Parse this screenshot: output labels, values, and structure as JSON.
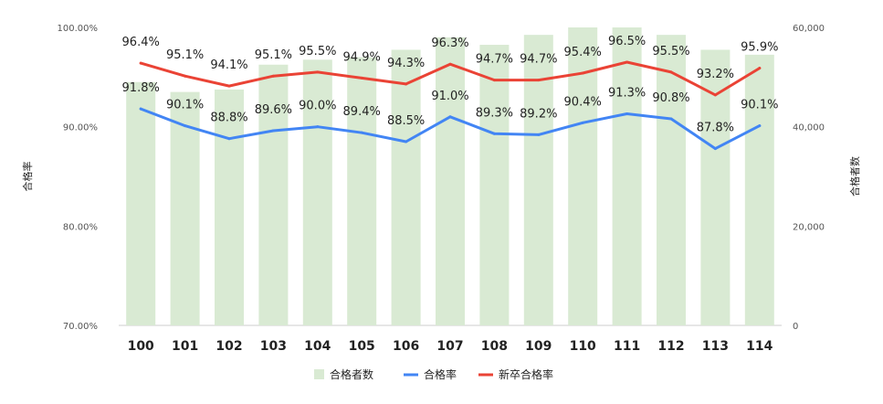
{
  "chart_data": {
    "type": "bar",
    "categories": [
      "100",
      "101",
      "102",
      "103",
      "104",
      "105",
      "106",
      "107",
      "108",
      "109",
      "110",
      "111",
      "112",
      "113",
      "114"
    ],
    "series": [
      {
        "name": "合格者数",
        "type": "bar",
        "axis": "right",
        "color": "#d9ead3",
        "values": [
          49000,
          47000,
          47500,
          52500,
          53500,
          54000,
          55500,
          58000,
          56500,
          58500,
          60000,
          60000,
          58500,
          55500,
          54500
        ]
      },
      {
        "name": "合格率",
        "type": "line",
        "axis": "left",
        "color": "#4285f4",
        "values": [
          91.8,
          90.1,
          88.8,
          89.6,
          90.0,
          89.4,
          88.5,
          91.0,
          89.3,
          89.2,
          90.4,
          91.3,
          90.8,
          87.8,
          90.1
        ],
        "labels": [
          "91.8%",
          "90.1%",
          "88.8%",
          "89.6%",
          "90.0%",
          "89.4%",
          "88.5%",
          "91.0%",
          "89.3%",
          "89.2%",
          "90.4%",
          "91.3%",
          "90.8%",
          "87.8%",
          "90.1%"
        ]
      },
      {
        "name": "新卒合格率",
        "type": "line",
        "axis": "left",
        "color": "#ea4335",
        "values": [
          96.4,
          95.1,
          94.1,
          95.1,
          95.5,
          94.9,
          94.3,
          96.3,
          94.7,
          94.7,
          95.4,
          96.5,
          95.5,
          93.2,
          95.9
        ],
        "labels": [
          "96.4%",
          "95.1%",
          "94.1%",
          "95.1%",
          "95.5%",
          "94.9%",
          "94.3%",
          "96.3%",
          "94.7%",
          "94.7%",
          "95.4%",
          "96.5%",
          "95.5%",
          "93.2%",
          "95.9%"
        ]
      }
    ],
    "y_left": {
      "label": "合格率",
      "range": [
        70,
        100
      ],
      "ticks": [
        70,
        80,
        90,
        100
      ],
      "tick_labels": [
        "70.00%",
        "80.00%",
        "90.00%",
        "100.00%"
      ]
    },
    "y_right": {
      "label": "合格者数",
      "range": [
        0,
        60000
      ],
      "ticks": [
        0,
        20000,
        40000,
        60000
      ],
      "tick_labels": [
        "0",
        "20,000",
        "40,000",
        "60,000"
      ]
    },
    "grid": false,
    "legend": "bottom"
  }
}
